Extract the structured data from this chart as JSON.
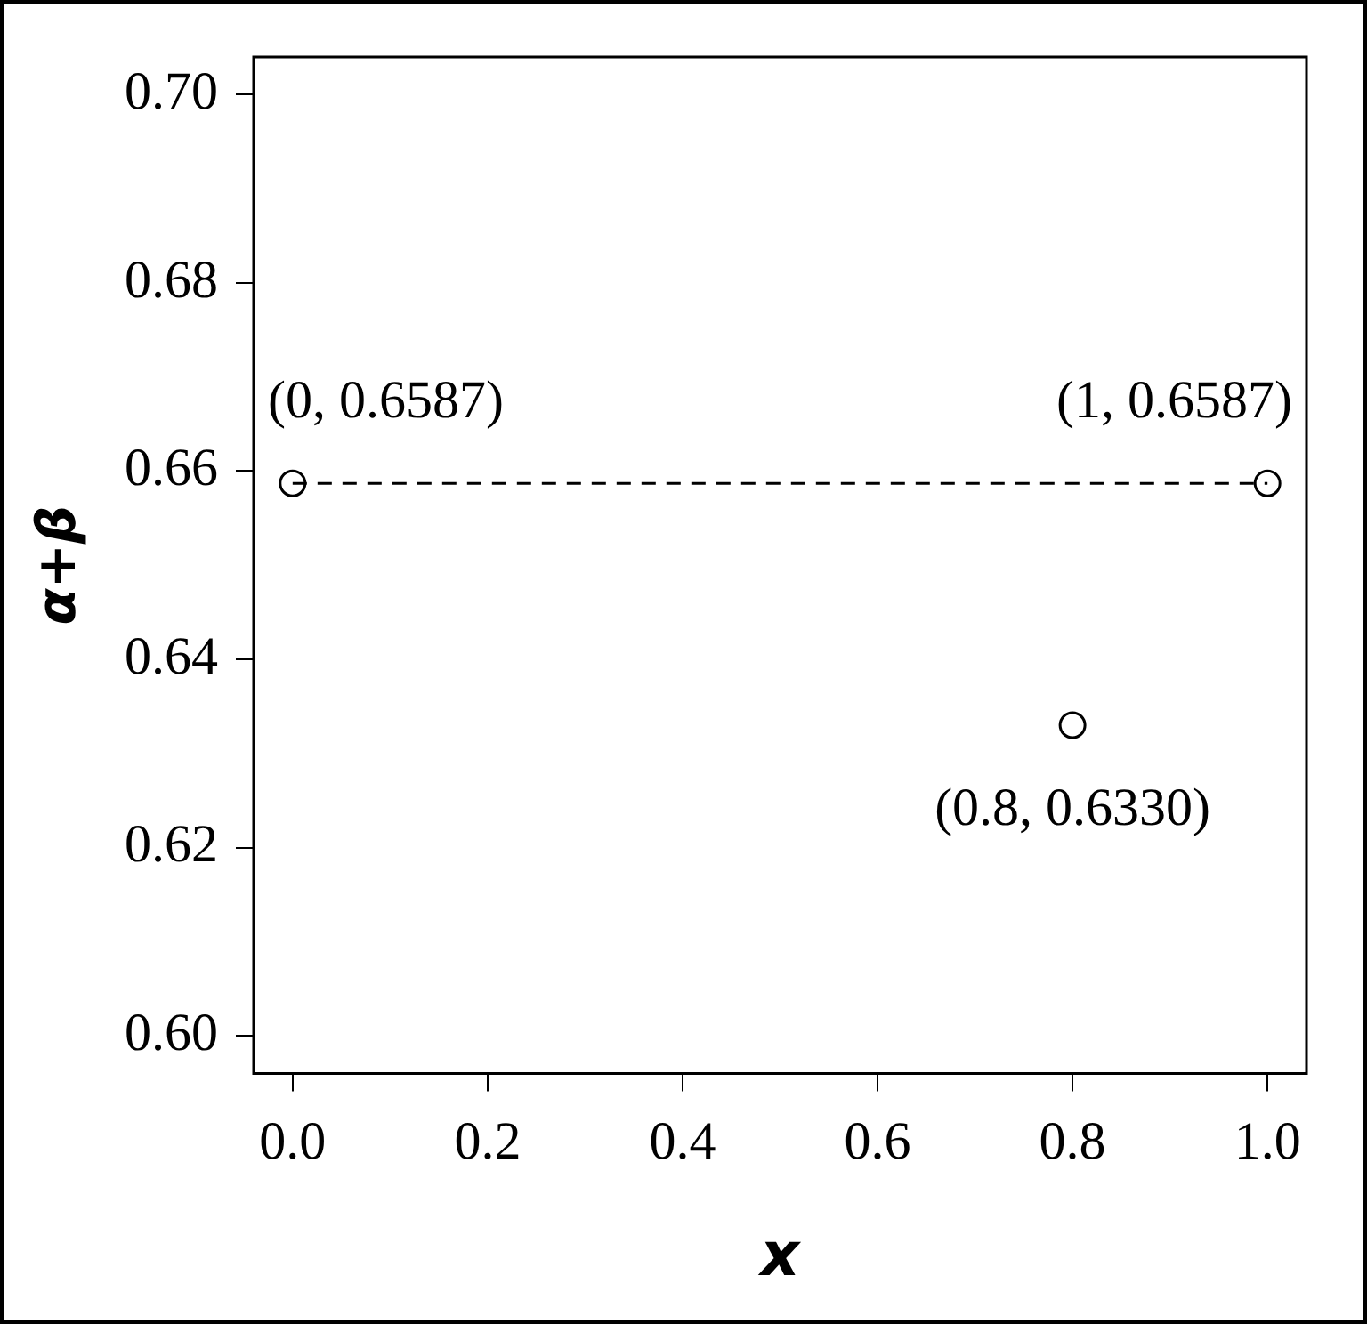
{
  "chart_data": {
    "type": "scatter",
    "xlabel": "x",
    "ylabel": "α+β",
    "series": [
      {
        "type": "line",
        "color": "#000000",
        "x": [
          0,
          1
        ],
        "values": [
          0.6587,
          0.6587
        ],
        "line_style": "dashed",
        "marker": "none"
      },
      {
        "color": "#000000",
        "x": [
          0,
          0.8,
          1
        ],
        "values": [
          0.6587,
          0.633,
          0.6587
        ],
        "marker": "circle"
      }
    ],
    "xlim": [
      -0.04,
      1.04
    ],
    "ylim": [
      0.596,
      0.704
    ],
    "xticks": [
      {
        "value": 0,
        "label": "0.0"
      },
      {
        "value": 0.2,
        "label": "0.2"
      },
      {
        "value": 0.4,
        "label": "0.4"
      },
      {
        "value": 0.6,
        "label": "0.6"
      },
      {
        "value": 0.8,
        "label": "0.8"
      },
      {
        "value": 1,
        "label": "1.0"
      }
    ],
    "yticks": [
      {
        "value": 0.6,
        "label": "0.60"
      },
      {
        "value": 0.62,
        "label": "0.62"
      },
      {
        "value": 0.64,
        "label": "0.64"
      },
      {
        "value": 0.66,
        "label": "0.66"
      },
      {
        "value": 0.68,
        "label": "0.68"
      },
      {
        "value": 0.7,
        "label": "0.70"
      }
    ],
    "annotations": [
      {
        "text": "(0, 0.6587)",
        "x": 0,
        "y": 0.6587
      },
      {
        "text": "(1, 0.6587)",
        "x": 1,
        "y": 0.6587
      },
      {
        "text": "(0.8, 0.6330)",
        "x": 0.8,
        "y": 0.633
      }
    ]
  }
}
